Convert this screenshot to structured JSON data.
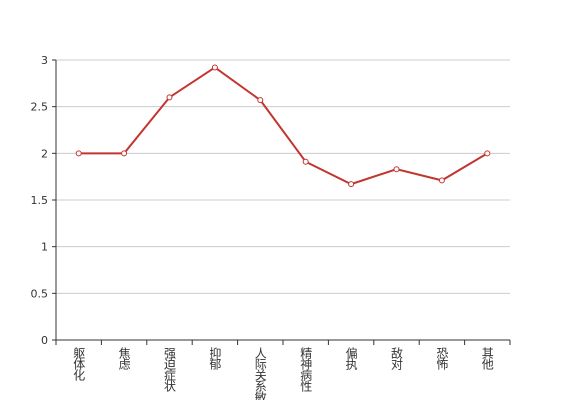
{
  "chart_data": {
    "type": "line",
    "categories": [
      "躯体化",
      "焦虑",
      "强迫症状",
      "抑郁",
      "人际关系敏感",
      "精神病性",
      "偏执",
      "敌对",
      "恐怖",
      "其他"
    ],
    "series": [
      {
        "name": null,
        "color": "#c23531",
        "values": [
          2.0,
          2.0,
          2.6,
          2.92,
          2.57,
          1.91,
          1.67,
          1.83,
          1.71,
          2.0
        ]
      }
    ],
    "ylim": [
      0,
      3
    ],
    "yticks": [
      0,
      0.5,
      1,
      1.5,
      2,
      2.5,
      3
    ],
    "grid": true
  }
}
